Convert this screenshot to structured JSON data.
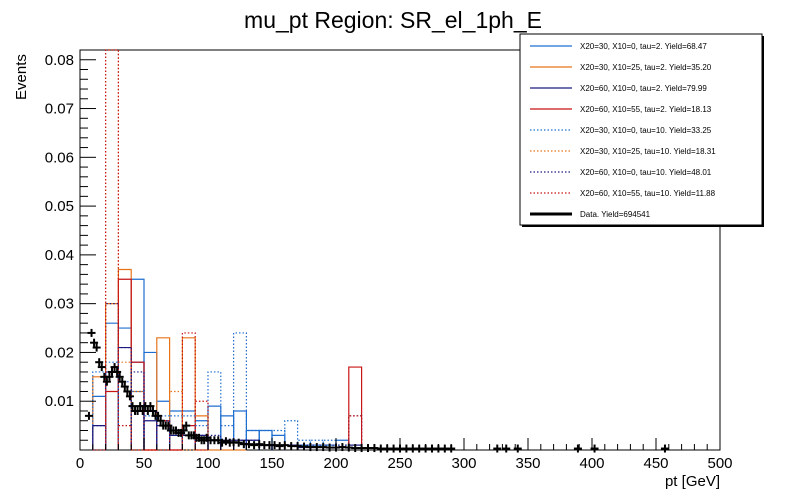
{
  "chart_data": {
    "type": "histogram",
    "title": "mu_pt Region: SR_el_1ph_E",
    "xlabel": "pt [GeV]",
    "ylabel": "Events",
    "xlim": [
      0,
      500
    ],
    "ylim": [
      0,
      0.082
    ],
    "x_ticks": [
      0,
      50,
      100,
      150,
      200,
      250,
      300,
      350,
      400,
      450,
      500
    ],
    "y_ticks": [
      0.01,
      0.02,
      0.03,
      0.04,
      0.05,
      0.06,
      0.07,
      0.08
    ],
    "bin_width": 10,
    "series": [
      {
        "name": "X20=30, X10=0, tau=2. Yield=68.47",
        "color": "#1f6fd1",
        "style": "solid",
        "bins": [
          [
            10,
            0.011
          ],
          [
            20,
            0.026
          ],
          [
            30,
            0.025
          ],
          [
            40,
            0.035
          ],
          [
            50,
            0.02
          ],
          [
            60,
            0.01
          ],
          [
            70,
            0.008
          ],
          [
            80,
            0.008
          ],
          [
            90,
            0.006
          ],
          [
            100,
            0.009
          ],
          [
            110,
            0.007
          ],
          [
            120,
            0.008
          ],
          [
            130,
            0.004
          ],
          [
            140,
            0.004
          ],
          [
            150,
            0.003
          ],
          [
            160,
            0.001
          ],
          [
            170,
            0.001
          ],
          [
            180,
            0.001
          ],
          [
            190,
            0.001
          ],
          [
            200,
            0.002
          ]
        ]
      },
      {
        "name": "X20=30, X10=25, tau=2. Yield=35.20",
        "color": "#e8741a",
        "style": "solid",
        "bins": [
          [
            10,
            0.015
          ],
          [
            20,
            0.03
          ],
          [
            30,
            0.037
          ],
          [
            40,
            0.012
          ],
          [
            50,
            0.0
          ],
          [
            60,
            0.023
          ],
          [
            70,
            0.0
          ],
          [
            80,
            0.023
          ],
          [
            90,
            0.007
          ],
          [
            100,
            0.0
          ],
          [
            110,
            0.0
          ],
          [
            120,
            0.0
          ]
        ]
      },
      {
        "name": "X20=60, X10=0, tau=2. Yield=79.99",
        "color": "#1a1a80",
        "style": "solid",
        "bins": [
          [
            10,
            0.005
          ],
          [
            20,
            0.016
          ],
          [
            30,
            0.021
          ],
          [
            40,
            0.018
          ],
          [
            50,
            0.006
          ],
          [
            60,
            0.005
          ],
          [
            70,
            0.003
          ],
          [
            80,
            0.003
          ],
          [
            90,
            0.003
          ],
          [
            100,
            0.002
          ],
          [
            110,
            0.002
          ],
          [
            120,
            0.002
          ],
          [
            130,
            0.002
          ],
          [
            140,
            0.001
          ],
          [
            150,
            0.001
          ],
          [
            160,
            0.001
          ],
          [
            170,
            0.0005
          ],
          [
            180,
            0.0005
          ],
          [
            190,
            0.0005
          ],
          [
            200,
            0.0005
          ],
          [
            210,
            0.001
          ]
        ]
      },
      {
        "name": "X20=60, X10=55, tau=2. Yield=18.13",
        "color": "#c81414",
        "style": "solid",
        "bins": [
          [
            20,
            0.012
          ],
          [
            30,
            0.035
          ],
          [
            40,
            0.018
          ],
          [
            50,
            0.0
          ],
          [
            60,
            0.006
          ],
          [
            70,
            0.0
          ],
          [
            80,
            0.005
          ],
          [
            90,
            0.0
          ],
          [
            210,
            0.017
          ]
        ]
      },
      {
        "name": "X20=30, X10=0, tau=10. Yield=33.25",
        "color": "#1f6fd1",
        "style": "dotted",
        "bins": [
          [
            10,
            0.016
          ],
          [
            20,
            0.018
          ],
          [
            30,
            0.014
          ],
          [
            40,
            0.012
          ],
          [
            50,
            0.007
          ],
          [
            60,
            0.007
          ],
          [
            70,
            0.007
          ],
          [
            80,
            0.007
          ],
          [
            90,
            0.005
          ],
          [
            100,
            0.016
          ],
          [
            110,
            0.005
          ],
          [
            120,
            0.024
          ],
          [
            130,
            0.004
          ],
          [
            140,
            0.004
          ],
          [
            150,
            0.004
          ],
          [
            160,
            0.006
          ],
          [
            170,
            0.002
          ],
          [
            180,
            0.002
          ],
          [
            190,
            0.002
          ],
          [
            200,
            0.001
          ]
        ]
      },
      {
        "name": "X20=30, X10=25, tau=10. Yield=18.31",
        "color": "#e8741a",
        "style": "dotted",
        "bins": [
          [
            20,
            0.082
          ],
          [
            30,
            0.018
          ],
          [
            40,
            0.0
          ],
          [
            50,
            0.0
          ],
          [
            60,
            0.0
          ],
          [
            70,
            0.012
          ],
          [
            80,
            0.0
          ],
          [
            90,
            0.0
          ]
        ]
      },
      {
        "name": "X20=60, X10=0, tau=10. Yield=48.01",
        "color": "#1a1a80",
        "style": "dotted",
        "bins": [
          [
            10,
            0.005
          ],
          [
            20,
            0.03
          ],
          [
            30,
            0.021
          ],
          [
            40,
            0.016
          ],
          [
            50,
            0.008
          ],
          [
            60,
            0.006
          ],
          [
            70,
            0.004
          ],
          [
            80,
            0.003
          ],
          [
            90,
            0.003
          ],
          [
            100,
            0.003
          ],
          [
            110,
            0.002
          ],
          [
            120,
            0.002
          ],
          [
            130,
            0.002
          ],
          [
            140,
            0.001
          ],
          [
            150,
            0.001
          ],
          [
            160,
            0.001
          ],
          [
            170,
            0.001
          ],
          [
            180,
            0.001
          ],
          [
            190,
            0.001
          ],
          [
            200,
            0.001
          ],
          [
            210,
            0.007
          ]
        ]
      },
      {
        "name": "X20=60, X10=55, tau=10. Yield=11.88",
        "color": "#c81414",
        "style": "dotted",
        "bins": [
          [
            10,
            0.0
          ],
          [
            20,
            0.082
          ],
          [
            30,
            0.005
          ],
          [
            40,
            0.0
          ],
          [
            50,
            0.0
          ],
          [
            60,
            0.0
          ],
          [
            70,
            0.0
          ],
          [
            80,
            0.024
          ],
          [
            90,
            0.01
          ],
          [
            210,
            0.007
          ]
        ]
      }
    ],
    "data_series": {
      "name": "Data. Yield=694541",
      "color": "#000000",
      "points": [
        [
          7,
          0.007
        ],
        [
          9,
          0.024
        ],
        [
          11,
          0.022
        ],
        [
          13,
          0.021
        ],
        [
          15,
          0.018
        ],
        [
          17,
          0.017
        ],
        [
          19,
          0.015
        ],
        [
          21,
          0.014
        ],
        [
          23,
          0.015
        ],
        [
          25,
          0.016
        ],
        [
          27,
          0.017
        ],
        [
          29,
          0.016
        ],
        [
          31,
          0.015
        ],
        [
          33,
          0.014
        ],
        [
          35,
          0.013
        ],
        [
          37,
          0.012
        ],
        [
          39,
          0.011
        ],
        [
          41,
          0.009
        ],
        [
          43,
          0.008
        ],
        [
          45,
          0.008
        ],
        [
          47,
          0.009
        ],
        [
          49,
          0.008
        ],
        [
          51,
          0.009
        ],
        [
          53,
          0.008
        ],
        [
          55,
          0.009
        ],
        [
          57,
          0.008
        ],
        [
          59,
          0.007
        ],
        [
          61,
          0.007
        ],
        [
          63,
          0.006
        ],
        [
          65,
          0.005
        ],
        [
          67,
          0.005
        ],
        [
          69,
          0.005
        ],
        [
          71,
          0.004
        ],
        [
          73,
          0.004
        ],
        [
          75,
          0.004
        ],
        [
          77,
          0.0035
        ],
        [
          79,
          0.0035
        ],
        [
          81,
          0.004
        ],
        [
          83,
          0.005
        ],
        [
          85,
          0.003
        ],
        [
          87,
          0.003
        ],
        [
          89,
          0.003
        ],
        [
          91,
          0.0025
        ],
        [
          93,
          0.0025
        ],
        [
          95,
          0.002
        ],
        [
          97,
          0.002
        ],
        [
          99,
          0.0025
        ],
        [
          102,
          0.002
        ],
        [
          105,
          0.002
        ],
        [
          108,
          0.002
        ],
        [
          111,
          0.0015
        ],
        [
          114,
          0.0018
        ],
        [
          117,
          0.0015
        ],
        [
          120,
          0.0016
        ],
        [
          124,
          0.0015
        ],
        [
          128,
          0.0012
        ],
        [
          132,
          0.0012
        ],
        [
          136,
          0.001
        ],
        [
          140,
          0.0012
        ],
        [
          144,
          0.001
        ],
        [
          148,
          0.001
        ],
        [
          152,
          0.001
        ],
        [
          156,
          0.0008
        ],
        [
          160,
          0.001
        ],
        [
          165,
          0.0008
        ],
        [
          170,
          0.0008
        ],
        [
          175,
          0.0007
        ],
        [
          180,
          0.0006
        ],
        [
          185,
          0.0006
        ],
        [
          190,
          0.0006
        ],
        [
          195,
          0.0005
        ],
        [
          200,
          0.0005
        ],
        [
          205,
          0.0006
        ],
        [
          210,
          0.0005
        ],
        [
          215,
          0.0004
        ],
        [
          220,
          0.0004
        ],
        [
          225,
          0.0004
        ],
        [
          230,
          0.0004
        ],
        [
          235,
          0.0003
        ],
        [
          240,
          0.0003
        ],
        [
          245,
          0.0003
        ],
        [
          250,
          0.0003
        ],
        [
          255,
          0.0003
        ],
        [
          260,
          0.0003
        ],
        [
          265,
          0.0003
        ],
        [
          270,
          0.0003
        ],
        [
          275,
          0.0003
        ],
        [
          280,
          0.0003
        ],
        [
          285,
          0.0003
        ],
        [
          290,
          0.0003
        ],
        [
          326,
          0.0003
        ],
        [
          333,
          0.0003
        ],
        [
          342,
          0.0003
        ],
        [
          389,
          0.0003
        ],
        [
          402,
          0.0003
        ],
        [
          457,
          0.0003
        ]
      ]
    },
    "legend": {
      "position": "top-right",
      "entries": [
        "X20=30, X10=0, tau=2. Yield=68.47",
        "X20=30, X10=25, tau=2. Yield=35.20",
        "X20=60, X10=0, tau=2. Yield=79.99",
        "X20=60, X10=55, tau=2. Yield=18.13",
        "X20=30, X10=0, tau=10. Yield=33.25",
        "X20=30, X10=25, tau=10. Yield=18.31",
        "X20=60, X10=0, tau=10. Yield=48.01",
        "X20=60, X10=55, tau=10. Yield=11.88",
        "Data. Yield=694541"
      ]
    }
  }
}
